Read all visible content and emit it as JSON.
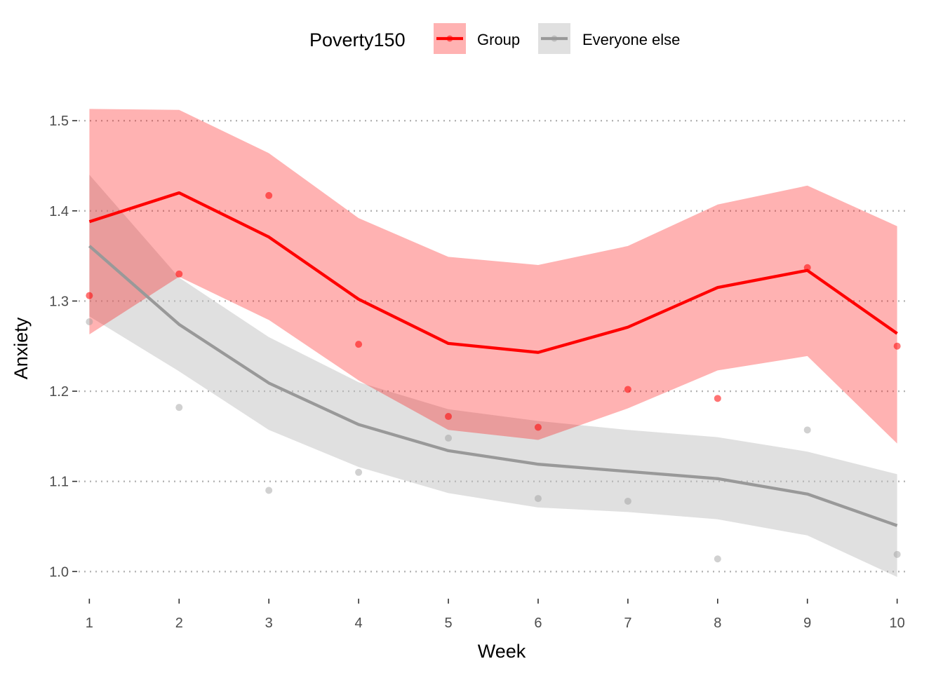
{
  "chart_data": {
    "type": "line",
    "xlabel": "Week",
    "ylabel": "Anxiety",
    "x": [
      1,
      2,
      3,
      4,
      5,
      6,
      7,
      8,
      9,
      10
    ],
    "xlim": [
      0.88,
      10.12
    ],
    "ylim": [
      0.973,
      1.525
    ],
    "x_ticks": [
      1,
      2,
      3,
      4,
      5,
      6,
      7,
      8,
      9,
      10
    ],
    "y_ticks": [
      1.0,
      1.1,
      1.2,
      1.3,
      1.4,
      1.5
    ],
    "y_tick_labels": [
      "1.0",
      "1.1",
      "1.2",
      "1.3",
      "1.4",
      "1.5"
    ],
    "grid": "horizontal-dotted",
    "legend": {
      "title": "Poverty150",
      "placement": "top",
      "entries": [
        "Group",
        "Everyone else"
      ]
    },
    "series": [
      {
        "name": "Group",
        "color": "#ff0000",
        "band_color": "#ff0000",
        "line": [
          1.388,
          1.42,
          1.371,
          1.302,
          1.253,
          1.243,
          1.271,
          1.315,
          1.334,
          1.264
        ],
        "ci_upper": [
          1.513,
          1.512,
          1.464,
          1.392,
          1.349,
          1.34,
          1.361,
          1.407,
          1.428,
          1.383
        ],
        "ci_lower": [
          1.263,
          1.327,
          1.279,
          1.212,
          1.157,
          1.146,
          1.181,
          1.223,
          1.239,
          1.142
        ],
        "points": [
          1.306,
          1.33,
          1.417,
          1.252,
          1.172,
          1.16,
          1.202,
          1.192,
          1.337,
          1.25
        ]
      },
      {
        "name": "Everyone else",
        "color": "#999999",
        "band_color": "#bebebe",
        "line": [
          1.361,
          1.274,
          1.209,
          1.163,
          1.134,
          1.119,
          1.111,
          1.103,
          1.086,
          1.051
        ],
        "ci_upper": [
          1.44,
          1.326,
          1.26,
          1.21,
          1.18,
          1.167,
          1.157,
          1.149,
          1.133,
          1.108
        ],
        "ci_lower": [
          1.283,
          1.222,
          1.157,
          1.116,
          1.087,
          1.071,
          1.066,
          1.058,
          1.04,
          0.994
        ],
        "points": [
          1.277,
          1.182,
          1.09,
          1.11,
          1.148,
          1.081,
          1.078,
          1.014,
          1.157,
          1.019
        ]
      }
    ]
  }
}
